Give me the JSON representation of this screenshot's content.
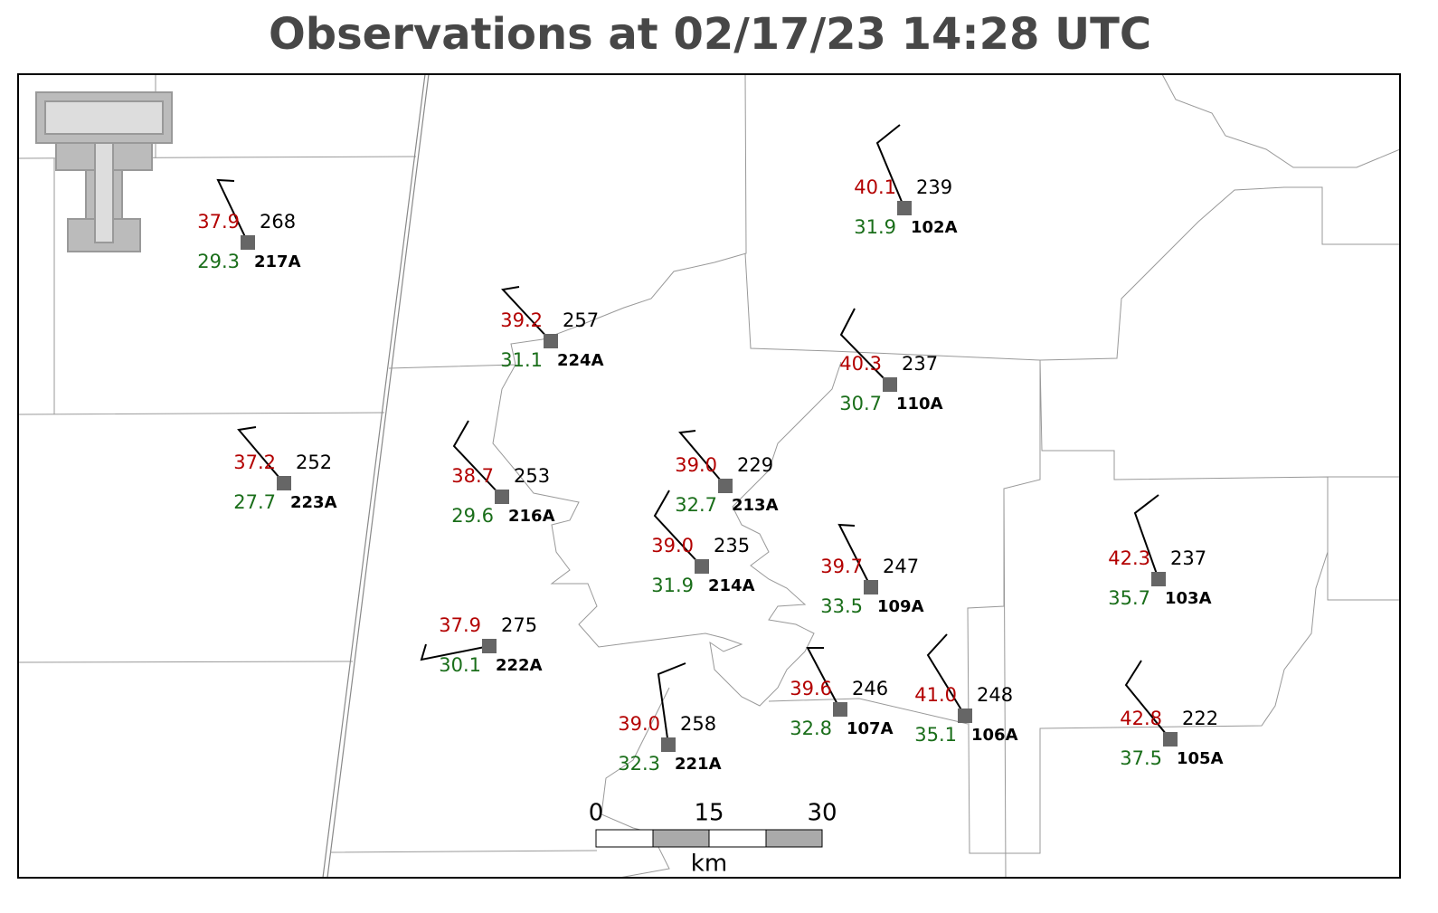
{
  "title": "Observations at 02/17/23 14:28 UTC",
  "stations": [
    {
      "id": "217A",
      "temperature": "37.9",
      "dewpoint": "29.3",
      "value": "268"
    },
    {
      "id": "224A",
      "temperature": "39.2",
      "dewpoint": "31.1",
      "value": "257"
    },
    {
      "id": "223A",
      "temperature": "37.2",
      "dewpoint": "27.7",
      "value": "252"
    },
    {
      "id": "216A",
      "temperature": "38.7",
      "dewpoint": "29.6",
      "value": "253"
    },
    {
      "id": "102A",
      "temperature": "40.1",
      "dewpoint": "31.9",
      "value": "239"
    },
    {
      "id": "110A",
      "temperature": "40.3",
      "dewpoint": "30.7",
      "value": "237"
    },
    {
      "id": "213A",
      "temperature": "39.0",
      "dewpoint": "32.7",
      "value": "229"
    },
    {
      "id": "214A",
      "temperature": "39.0",
      "dewpoint": "31.9",
      "value": "235"
    },
    {
      "id": "109A",
      "temperature": "39.7",
      "dewpoint": "33.5",
      "value": "247"
    },
    {
      "id": "222A",
      "temperature": "37.9",
      "dewpoint": "30.1",
      "value": "275"
    },
    {
      "id": "221A",
      "temperature": "39.0",
      "dewpoint": "32.3",
      "value": "258"
    },
    {
      "id": "107A",
      "temperature": "39.6",
      "dewpoint": "32.8",
      "value": "246"
    },
    {
      "id": "106A",
      "temperature": "41.0",
      "dewpoint": "35.1",
      "value": "248"
    },
    {
      "id": "103A",
      "temperature": "42.3",
      "dewpoint": "35.7",
      "value": "237"
    },
    {
      "id": "105A",
      "temperature": "42.8",
      "dewpoint": "37.5",
      "value": "222"
    }
  ],
  "scale_bar": {
    "labels": [
      "0",
      "15",
      "30"
    ],
    "unit": "km"
  }
}
